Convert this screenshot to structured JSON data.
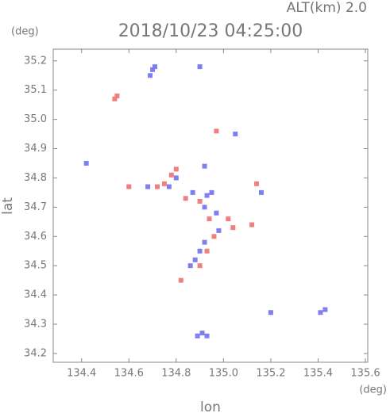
{
  "chart_data": {
    "type": "scatter",
    "title": "2018/10/23 04:25:00",
    "subtitle": "ALT(km) 2.0",
    "x_unit": "(deg)",
    "y_unit": "(deg)",
    "xlabel": "lon",
    "ylabel": "lat",
    "xlim": [
      134.28,
      135.61
    ],
    "ylim": [
      34.17,
      35.24
    ],
    "xticks": [
      134.4,
      134.6,
      134.8,
      {
        "value": 135,
        "label": "135.0"
      },
      135.2,
      135.4,
      135.6
    ],
    "yticks": [
      34.2,
      34.3,
      34.4,
      34.5,
      34.6,
      34.7,
      34.8,
      34.9,
      {
        "value": 35,
        "label": "35.0"
      },
      35.1,
      35.2
    ],
    "series": [
      {
        "color": "#7f7ff0",
        "x": [
          134.7,
          134.69,
          134.71,
          134.9,
          134.42,
          135.05,
          134.92,
          134.68,
          134.77,
          134.87,
          134.93,
          134.95,
          134.92,
          134.97,
          134.98,
          134.92,
          134.9,
          134.88,
          134.86,
          134.91,
          134.89,
          134.93,
          135.2,
          135.43,
          135.41,
          135.16,
          134.8
        ],
        "y": [
          35.17,
          35.15,
          35.18,
          35.18,
          34.85,
          34.95,
          34.84,
          34.77,
          34.77,
          34.75,
          34.74,
          34.75,
          34.7,
          34.68,
          34.62,
          34.58,
          34.55,
          34.52,
          34.5,
          34.27,
          34.26,
          34.26,
          34.34,
          34.35,
          34.34,
          34.75,
          34.8
        ]
      },
      {
        "color": "#f07f7f",
        "x": [
          134.55,
          134.54,
          134.97,
          134.8,
          134.78,
          134.6,
          134.72,
          134.75,
          134.84,
          134.9,
          134.94,
          135.02,
          135.04,
          135.12,
          134.96,
          134.9,
          134.82,
          135.14,
          134.93
        ],
        "y": [
          35.08,
          35.07,
          34.96,
          34.83,
          34.81,
          34.77,
          34.77,
          34.78,
          34.73,
          34.72,
          34.66,
          34.66,
          34.63,
          34.64,
          34.6,
          34.5,
          34.45,
          34.78,
          34.55
        ]
      }
    ]
  }
}
